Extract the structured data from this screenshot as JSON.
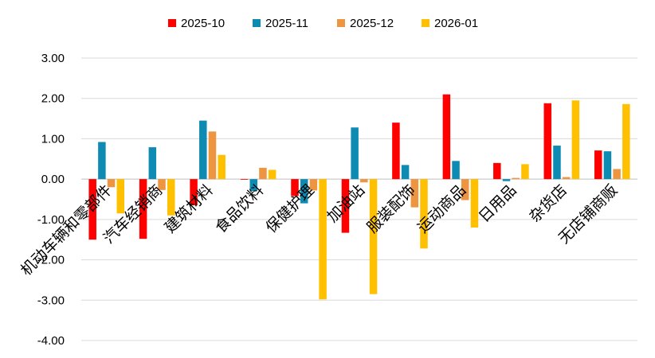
{
  "chart_data": {
    "type": "bar",
    "title": "",
    "xlabel": "",
    "ylabel": "",
    "ylim": [
      -4,
      3
    ],
    "yticks": [
      "3.00",
      "2.00",
      "1.00",
      "0.00",
      "-1.00",
      "-2.00",
      "-3.00",
      "-4.00"
    ],
    "grid": true,
    "legend_position": "top-center",
    "categories": [
      "机动车辆和零部件",
      "汽车经销商",
      "建筑材料",
      "食品饮料",
      "保健护理",
      "加油站",
      "服装配饰",
      "运动商品",
      "日用品",
      "杂货店",
      "无店铺商贩"
    ],
    "series": [
      {
        "name": "2025-10",
        "color": "#ff0000",
        "values": [
          -1.5,
          -1.48,
          -0.65,
          0.0,
          -0.42,
          -1.33,
          1.4,
          2.1,
          0.4,
          1.88,
          0.71
        ]
      },
      {
        "name": "2025-11",
        "color": "#0e8bb2",
        "values": [
          0.92,
          0.79,
          1.45,
          -0.3,
          -0.6,
          1.28,
          0.35,
          0.45,
          -0.05,
          0.83,
          0.69
        ]
      },
      {
        "name": "2025-12",
        "color": "#ed9540",
        "values": [
          -0.2,
          -0.27,
          1.18,
          0.28,
          -0.28,
          -0.08,
          -0.7,
          -0.52,
          0.03,
          0.05,
          0.25
        ]
      },
      {
        "name": "2026-01",
        "color": "#ffc000",
        "values": [
          -0.85,
          -0.9,
          0.6,
          0.23,
          -2.98,
          -2.85,
          -1.72,
          -1.2,
          0.37,
          1.95,
          1.86
        ]
      }
    ]
  }
}
